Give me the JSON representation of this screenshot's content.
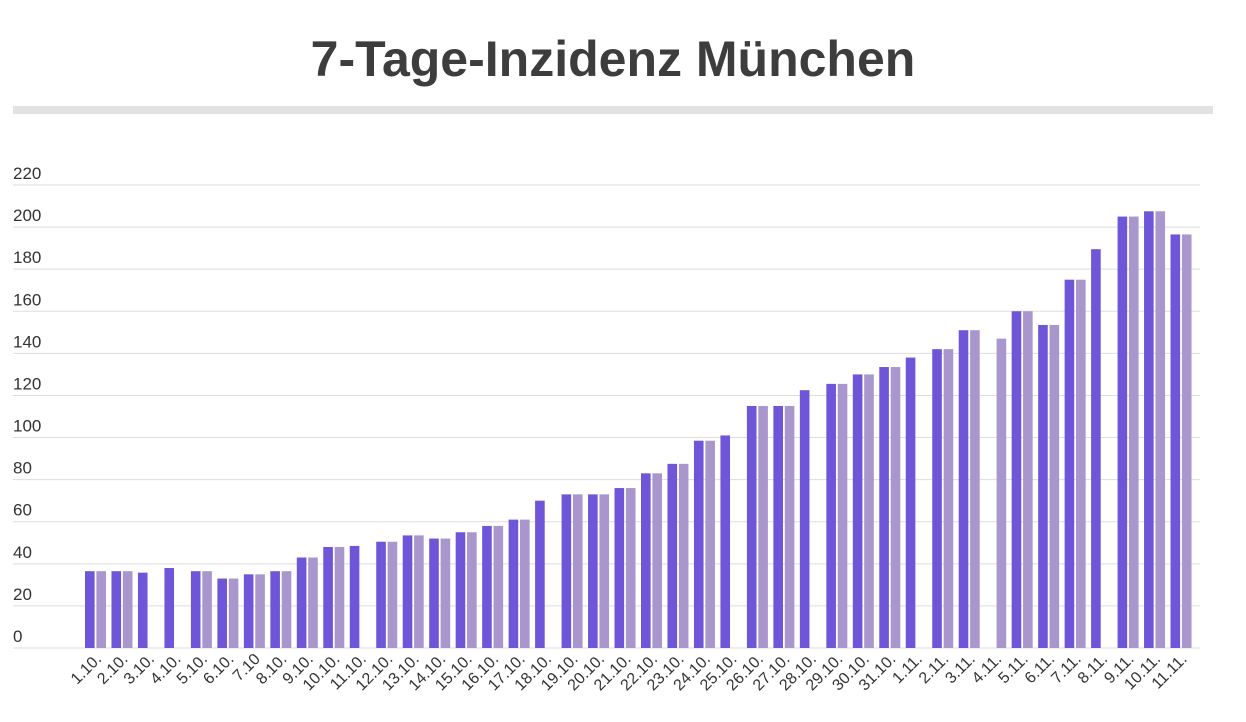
{
  "title": "7-Tage-Inzidenz München",
  "colors": {
    "bar_dark": "#6f55d8",
    "bar_light": "#a996cc",
    "grid": "#dddddd",
    "title": "#3d3d3d",
    "rule": "#e2e2e2"
  },
  "chart_data": {
    "type": "bar",
    "title": "7-Tage-Inzidenz München",
    "xlabel": "",
    "ylabel": "",
    "ylim": [
      0,
      220
    ],
    "yticks": [
      0,
      20,
      40,
      60,
      80,
      100,
      120,
      140,
      160,
      180,
      200,
      220
    ],
    "grid": true,
    "categories": [
      "1.10.",
      "2.10.",
      "3.10.",
      "4.10.",
      "5.10.",
      "6.10.",
      "7.10",
      "8.10.",
      "9.10.",
      "10.10.",
      "11.10.",
      "12.10.",
      "13.10.",
      "14.10.",
      "15.10.",
      "16.10.",
      "17.10.",
      "18.10.",
      "19.10.",
      "20.10.",
      "21.10.",
      "22.10.",
      "23.10.",
      "24.10.",
      "25.10.",
      "26.10.",
      "27.10.",
      "28.10.",
      "29.10.",
      "30.10.",
      "31.10.",
      "1.11.",
      "2.11.",
      "3.11.",
      "4.11.",
      "5.11.",
      "6.11.",
      "7.11.",
      "8.11.",
      "9.11.",
      "10.11.",
      "11.11."
    ],
    "series": [
      {
        "color": "#6f55d8",
        "values": [
          36.5,
          36.5,
          35.8,
          38.0,
          36.5,
          33.0,
          35.0,
          36.5,
          43.0,
          48.0,
          48.5,
          50.5,
          53.5,
          52.0,
          55.0,
          58.0,
          61.0,
          70.0,
          73.0,
          73.0,
          76.0,
          83.0,
          87.5,
          98.5,
          101.0,
          115.0,
          115.0,
          122.5,
          125.5,
          130.0,
          133.5,
          138.0,
          142.0,
          151.0,
          null,
          160.0,
          153.5,
          175.0,
          189.5,
          205.0,
          207.5,
          196.5
        ]
      },
      {
        "color": "#a996cc",
        "values": [
          36.5,
          36.5,
          null,
          null,
          36.5,
          33.0,
          35.0,
          36.5,
          43.0,
          48.0,
          null,
          50.5,
          53.5,
          52.0,
          55.0,
          58.0,
          61.0,
          null,
          73.0,
          73.0,
          76.0,
          83.0,
          87.5,
          98.5,
          null,
          115.0,
          115.0,
          null,
          125.5,
          130.0,
          133.5,
          null,
          142.0,
          151.0,
          147.0,
          160.0,
          153.5,
          175.0,
          null,
          205.0,
          207.5,
          196.5
        ]
      }
    ]
  }
}
